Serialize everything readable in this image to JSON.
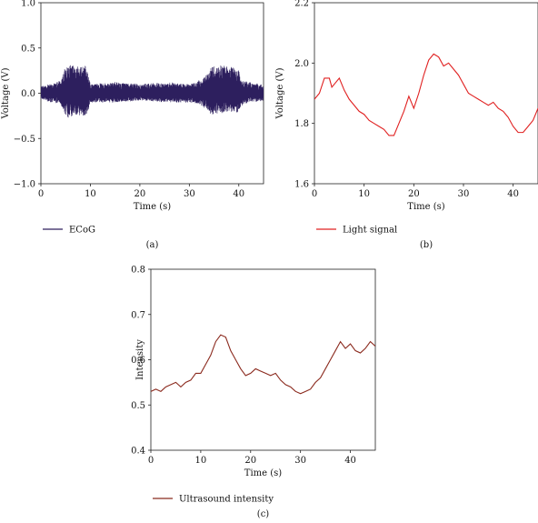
{
  "chart_data": [
    {
      "id": "a",
      "type": "line",
      "panel_label": "(a)",
      "xlabel": "Time (s)",
      "ylabel": "Voltage (V)",
      "xlim": [
        0,
        45
      ],
      "ylim": [
        -1.0,
        1.0
      ],
      "xticks": [
        0,
        10,
        20,
        30,
        40
      ],
      "xtick_labels": [
        "0",
        "10",
        "20",
        "30",
        "40"
      ],
      "yticks": [
        -1.0,
        -0.5,
        0.0,
        0.5,
        1.0
      ],
      "ytick_labels": [
        "−1.0",
        "−0.5",
        "0.0",
        "0.5",
        "1.0"
      ],
      "legend_position": "bottom-left",
      "color": "#2d1f5e",
      "series": [
        {
          "name": "ECoG",
          "envelope": {
            "x": [
              0,
              2,
              4,
              5,
              5.5,
              7,
              9,
              9.5,
              10,
              15,
              20,
              25,
              30,
              32,
              34,
              34.5,
              36,
              39,
              40,
              40.5,
              42,
              45
            ],
            "upper": [
              0.08,
              0.1,
              0.14,
              0.3,
              0.32,
              0.3,
              0.32,
              0.22,
              0.1,
              0.12,
              0.1,
              0.12,
              0.1,
              0.14,
              0.22,
              0.3,
              0.32,
              0.28,
              0.25,
              0.15,
              0.12,
              0.1
            ],
            "lower": [
              -0.06,
              -0.1,
              -0.12,
              -0.25,
              -0.27,
              -0.24,
              -0.26,
              -0.2,
              -0.1,
              -0.1,
              -0.08,
              -0.1,
              -0.1,
              -0.12,
              -0.2,
              -0.25,
              -0.22,
              -0.2,
              -0.22,
              -0.14,
              -0.1,
              -0.08
            ]
          }
        }
      ]
    },
    {
      "id": "b",
      "type": "line",
      "panel_label": "(b)",
      "xlabel": "Time (s)",
      "ylabel": "Voltage (V)",
      "xlim": [
        0,
        45
      ],
      "ylim": [
        1.6,
        2.2
      ],
      "xticks": [
        0,
        10,
        20,
        30,
        40
      ],
      "xtick_labels": [
        "0",
        "10",
        "20",
        "30",
        "40"
      ],
      "yticks": [
        1.6,
        1.8,
        2.0,
        2.2
      ],
      "ytick_labels": [
        "1.6",
        "1.8",
        "2.0",
        "2.2"
      ],
      "legend_position": "bottom-left",
      "color": "#e02020",
      "series": [
        {
          "name": "Light signal",
          "x": [
            0,
            1,
            2,
            3,
            3.5,
            4,
            5,
            6,
            7,
            8,
            9,
            10,
            11,
            12,
            13,
            14,
            15,
            16,
            17,
            18,
            19,
            20,
            21,
            22,
            23,
            24,
            25,
            26,
            27,
            28,
            29,
            30,
            31,
            32,
            33,
            34,
            35,
            36,
            37,
            38,
            39,
            40,
            41,
            42,
            43,
            44,
            45
          ],
          "y": [
            1.88,
            1.9,
            1.95,
            1.95,
            1.92,
            1.93,
            1.95,
            1.91,
            1.88,
            1.86,
            1.84,
            1.83,
            1.81,
            1.8,
            1.79,
            1.78,
            1.76,
            1.76,
            1.8,
            1.84,
            1.89,
            1.85,
            1.9,
            1.96,
            2.01,
            2.03,
            2.02,
            1.99,
            2.0,
            1.98,
            1.96,
            1.93,
            1.9,
            1.89,
            1.88,
            1.87,
            1.86,
            1.87,
            1.85,
            1.84,
            1.82,
            1.79,
            1.77,
            1.77,
            1.79,
            1.81,
            1.85
          ]
        }
      ]
    },
    {
      "id": "c",
      "type": "line",
      "panel_label": "(c)",
      "xlabel": "Time (s)",
      "ylabel": "Intensity",
      "xlim": [
        0,
        45
      ],
      "ylim": [
        0.4,
        0.8
      ],
      "xticks": [
        0,
        10,
        20,
        30,
        40
      ],
      "xtick_labels": [
        "0",
        "10",
        "20",
        "30",
        "40"
      ],
      "yticks": [
        0.4,
        0.5,
        0.6,
        0.7,
        0.8
      ],
      "ytick_labels": [
        "0.4",
        "0.5",
        "0.6",
        "0.7",
        "0.8"
      ],
      "legend_position": "bottom-left",
      "color": "#8b2a1e",
      "series": [
        {
          "name": "Ultrasound intensity",
          "x": [
            0,
            1,
            2,
            3,
            4,
            5,
            6,
            7,
            8,
            9,
            10,
            11,
            12,
            13,
            14,
            15,
            16,
            17,
            18,
            19,
            20,
            21,
            22,
            23,
            24,
            25,
            26,
            27,
            28,
            29,
            30,
            31,
            32,
            33,
            34,
            35,
            36,
            37,
            38,
            39,
            40,
            41,
            42,
            43,
            44,
            45
          ],
          "y": [
            0.53,
            0.535,
            0.53,
            0.54,
            0.545,
            0.55,
            0.54,
            0.55,
            0.555,
            0.57,
            0.57,
            0.59,
            0.61,
            0.64,
            0.655,
            0.65,
            0.62,
            0.6,
            0.58,
            0.565,
            0.57,
            0.58,
            0.575,
            0.57,
            0.565,
            0.57,
            0.555,
            0.545,
            0.54,
            0.53,
            0.525,
            0.53,
            0.535,
            0.55,
            0.56,
            0.58,
            0.6,
            0.62,
            0.64,
            0.625,
            0.635,
            0.62,
            0.615,
            0.625,
            0.64,
            0.63
          ]
        }
      ]
    }
  ]
}
